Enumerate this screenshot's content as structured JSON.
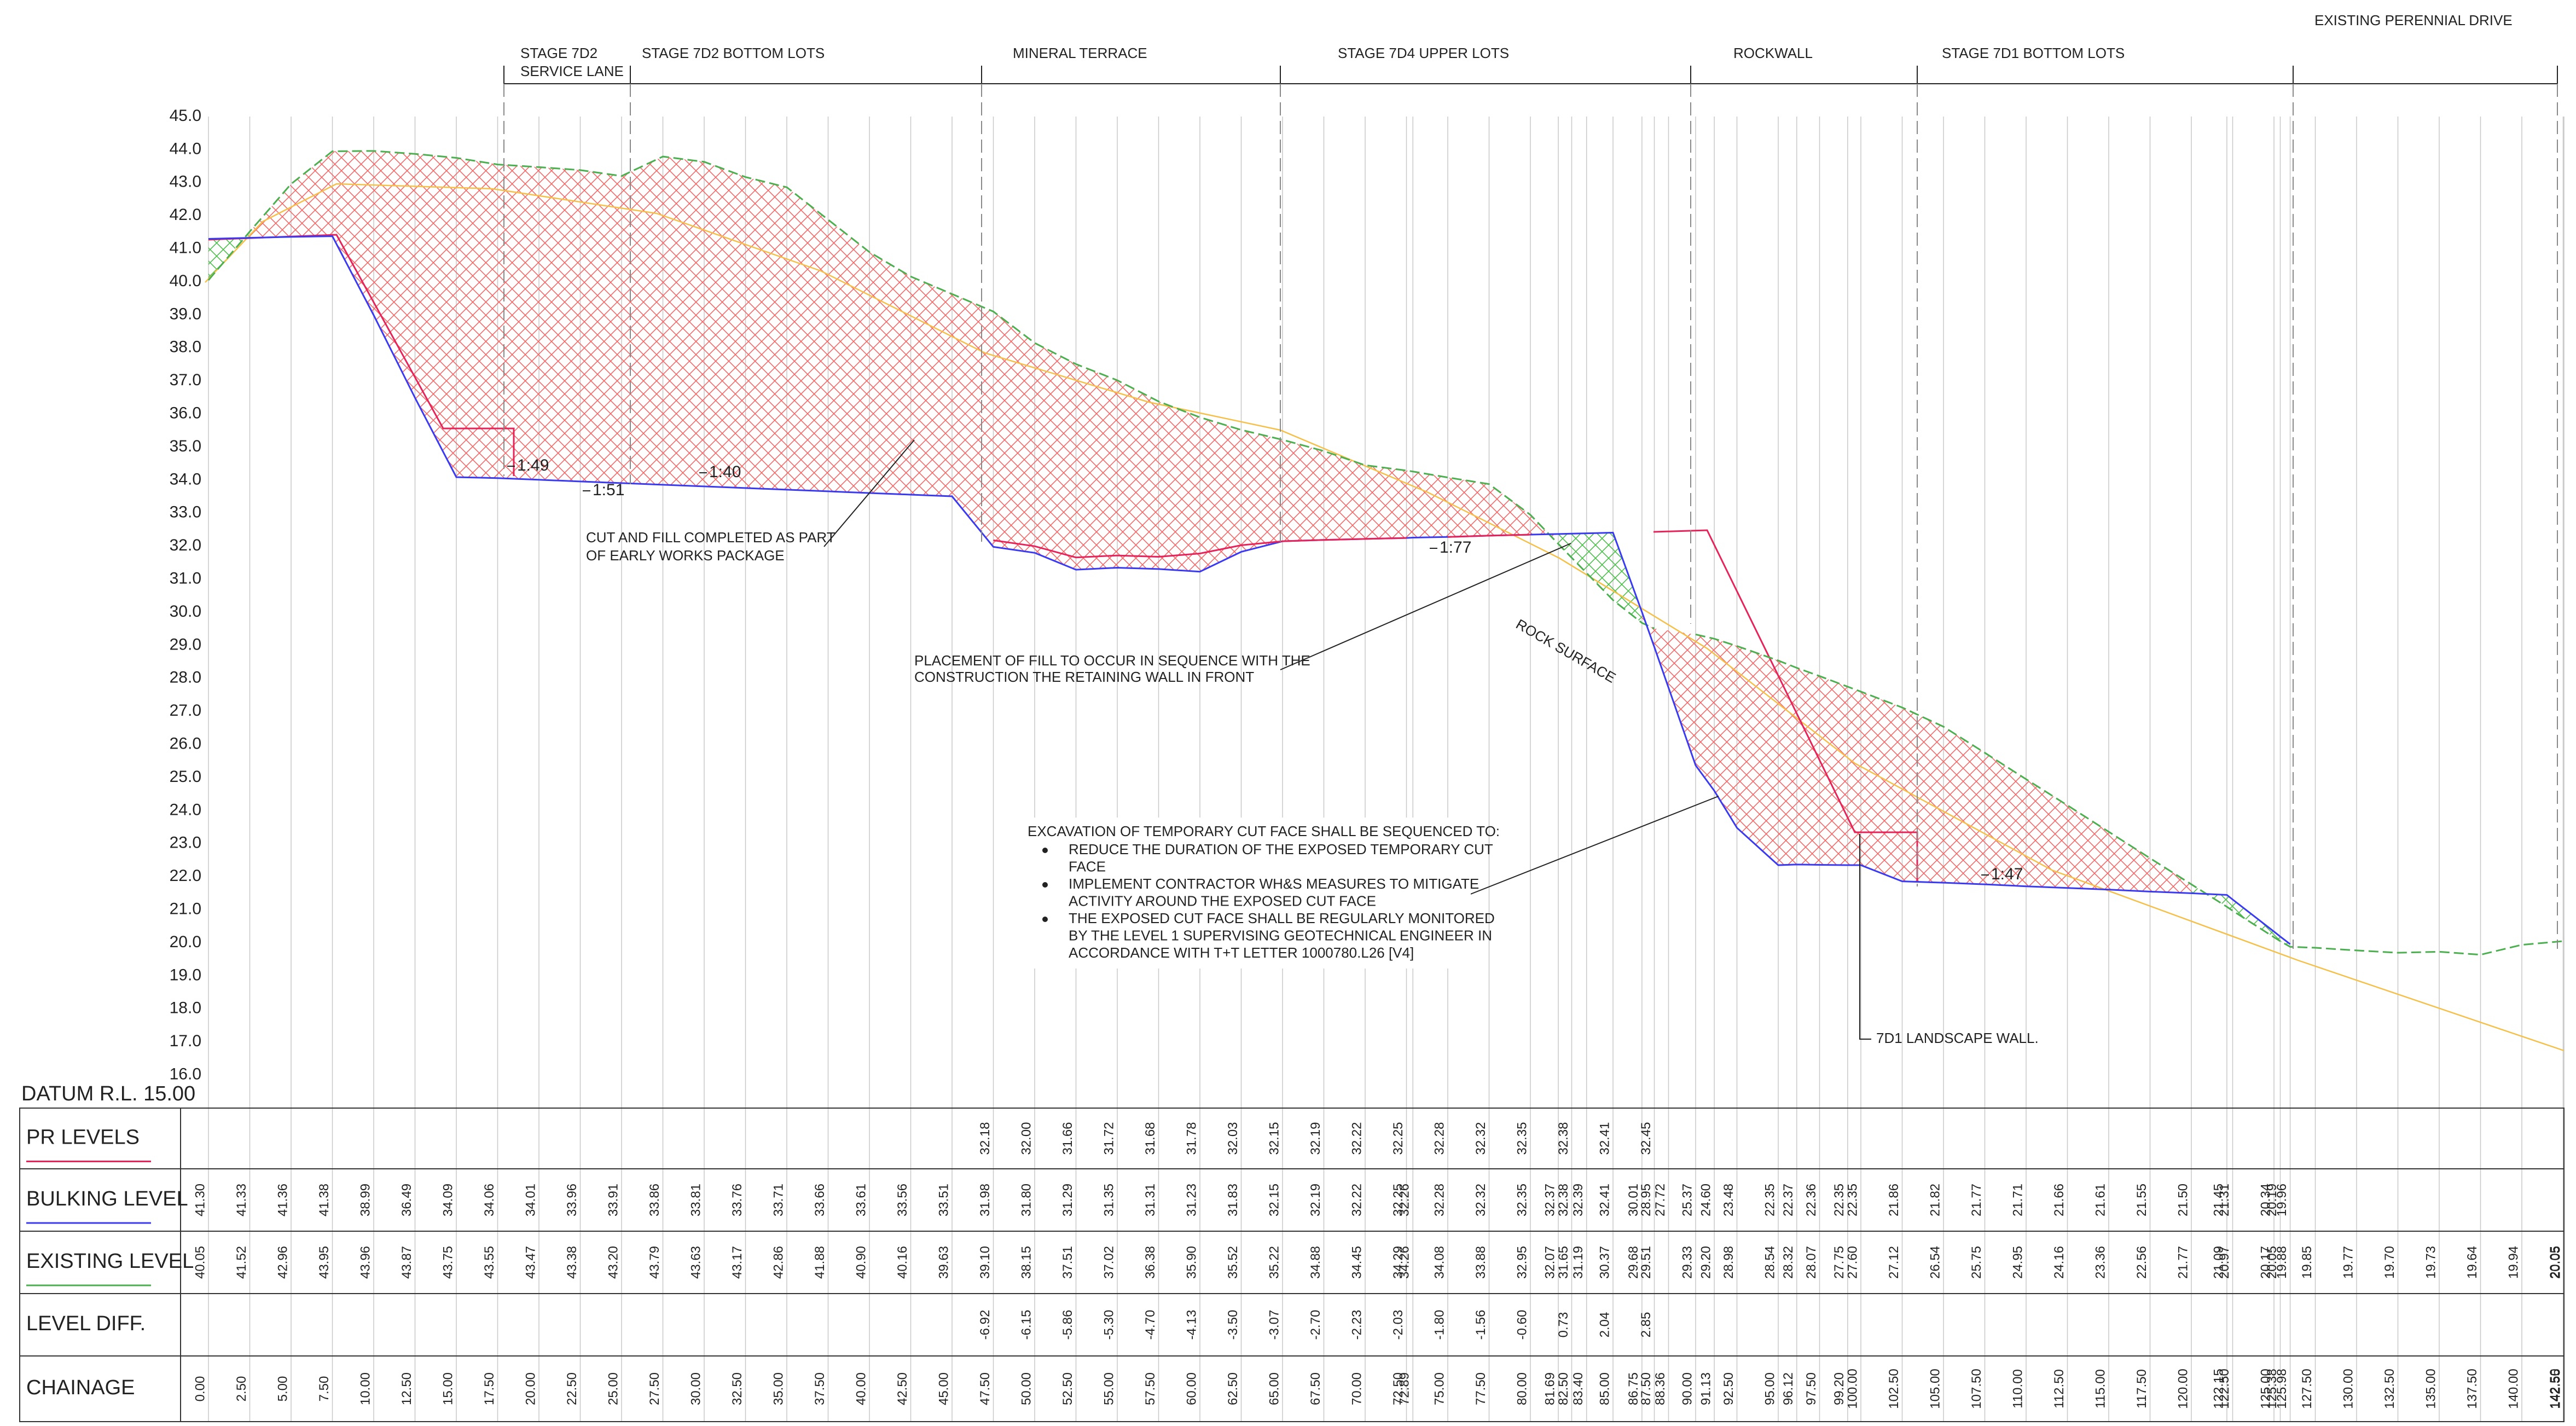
{
  "zones": [
    {
      "lines": [
        "STAGE 7D2",
        "SERVICE LANE"
      ]
    },
    {
      "lines": [
        "STAGE 7D2 BOTTOM LOTS"
      ]
    },
    {
      "lines": [
        "MINERAL TERRACE"
      ]
    },
    {
      "lines": [
        "STAGE 7D4 UPPER LOTS"
      ]
    },
    {
      "lines": [
        "ROCKWALL"
      ]
    },
    {
      "lines": [
        "STAGE 7D1 BOTTOM LOTS"
      ]
    },
    {
      "lines": [
        "EXISTING PERENNIAL DRIVE"
      ]
    }
  ],
  "y_axis": {
    "ticks": [
      "45.0",
      "44.0",
      "43.0",
      "42.0",
      "41.0",
      "40.0",
      "39.0",
      "38.0",
      "37.0",
      "36.0",
      "35.0",
      "34.0",
      "33.0",
      "32.0",
      "31.0",
      "30.0",
      "29.0",
      "28.0",
      "27.0",
      "26.0",
      "25.0",
      "24.0",
      "23.0",
      "22.0",
      "21.0",
      "20.0",
      "19.0",
      "18.0",
      "17.0",
      "16.0"
    ],
    "datum": "DATUM R.L. 15.00"
  },
  "annotations": {
    "cut_fill": [
      "CUT AND FILL COMPLETED AS PART",
      "OF EARLY WORKS PACKAGE"
    ],
    "placement": [
      "PLACEMENT OF FILL TO OCCUR IN SEQUENCE WITH THE",
      "CONSTRUCTION THE RETAINING WALL IN FRONT"
    ],
    "rock_surface": "ROCK SURFACE",
    "landscape_wall": "7D1 LANDSCAPE WALL.",
    "excavation": {
      "heading": "EXCAVATION OF TEMPORARY CUT FACE SHALL BE SEQUENCED TO:",
      "bullets": [
        [
          "REDUCE THE DURATION OF THE EXPOSED TEMPORARY CUT",
          "FACE"
        ],
        [
          "IMPLEMENT CONTRACTOR WH&S MEASURES TO MITIGATE",
          "ACTIVITY AROUND THE EXPOSED CUT FACE"
        ],
        [
          "THE EXPOSED CUT FACE SHALL BE REGULARLY MONITORED",
          "BY THE LEVEL 1 SUPERVISING GEOTECHNICAL ENGINEER IN",
          "ACCORDANCE WITH T+T LETTER 1000780.L26 [V4]"
        ]
      ]
    },
    "slopes": [
      "1:49",
      "1:51",
      "1:40",
      "1:77",
      "1:47"
    ]
  },
  "table": {
    "row_labels": [
      "PR LEVELS",
      "BULKING LEVEL",
      "EXISTING LEVEL",
      "LEVEL DIFF.",
      "CHAINAGE"
    ],
    "rows": [
      [
        null,
        null,
        null,
        null,
        null,
        null,
        null,
        null,
        null,
        null,
        null,
        null,
        null,
        null,
        null,
        null,
        null,
        null,
        null,
        "32.18",
        "32.00",
        "31.66",
        "31.72",
        "31.68",
        "31.78",
        "32.03",
        "32.15",
        "32.19",
        "32.22",
        "32.25",
        null,
        "32.28",
        "32.32",
        "32.35",
        null,
        "32.38",
        null,
        "32.41",
        null,
        "32.45",
        null,
        null,
        null,
        null,
        null,
        null,
        null,
        null,
        null,
        null,
        null,
        null,
        null,
        null,
        null,
        null,
        null,
        null,
        null,
        null,
        null,
        null,
        null,
        null,
        null,
        null,
        null,
        null,
        null,
        null
      ],
      [
        "41.30",
        "41.33",
        "41.36",
        "41.38",
        "38.99",
        "36.49",
        "34.09",
        "34.06",
        "34.01",
        "33.96",
        "33.91",
        "33.86",
        "33.81",
        "33.76",
        "33.71",
        "33.66",
        "33.61",
        "33.56",
        "33.51",
        "31.98",
        "31.80",
        "31.29",
        "31.35",
        "31.31",
        "31.23",
        "31.83",
        "32.15",
        "32.19",
        "32.22",
        "32.25",
        "32.26",
        "32.28",
        "32.32",
        "32.35",
        "32.37",
        "32.38",
        "32.39",
        "32.41",
        "30.01",
        "28.95",
        "27.72",
        "25.37",
        "24.60",
        "23.48",
        "22.35",
        "22.37",
        "22.36",
        "22.35",
        "22.35",
        "21.86",
        "21.82",
        "21.77",
        "21.71",
        "21.66",
        "21.61",
        "21.55",
        "21.50",
        "21.45",
        "21.31",
        "20.34",
        "20.19",
        "19.96",
        null,
        null,
        null,
        null,
        null,
        null,
        null,
        null
      ],
      [
        "40.05",
        "41.52",
        "42.96",
        "43.95",
        "43.96",
        "43.87",
        "43.75",
        "43.55",
        "43.47",
        "43.38",
        "43.20",
        "43.79",
        "43.63",
        "43.17",
        "42.86",
        "41.88",
        "40.90",
        "40.16",
        "39.63",
        "39.10",
        "38.15",
        "37.51",
        "37.02",
        "36.38",
        "35.90",
        "35.52",
        "35.22",
        "34.88",
        "34.45",
        "34.29",
        "34.26",
        "34.08",
        "33.88",
        "32.95",
        "32.07",
        "31.65",
        "31.19",
        "30.37",
        "29.68",
        "29.51",
        null,
        "29.33",
        "29.20",
        "28.98",
        "28.54",
        "28.32",
        "28.07",
        "27.75",
        "27.60",
        "27.12",
        "26.54",
        "25.75",
        "24.95",
        "24.16",
        "23.36",
        "22.56",
        "21.77",
        "21.09",
        "20.97",
        "20.17",
        "20.05",
        "19.88",
        "19.85",
        "19.77",
        "19.70",
        "19.73",
        "19.64",
        "19.94",
        "20.05",
        "20.05"
      ],
      [
        null,
        null,
        null,
        null,
        null,
        null,
        null,
        null,
        null,
        null,
        null,
        null,
        null,
        null,
        null,
        null,
        null,
        null,
        null,
        "-6.92",
        "-6.15",
        "-5.86",
        "-5.30",
        "-4.70",
        "-4.13",
        "-3.50",
        "-3.07",
        "-2.70",
        "-2.23",
        "-2.03",
        null,
        "-1.80",
        "-1.56",
        "-0.60",
        null,
        "0.73",
        null,
        "2.04",
        null,
        "2.85",
        null,
        null,
        null,
        null,
        null,
        null,
        null,
        null,
        null,
        null,
        null,
        null,
        null,
        null,
        null,
        null,
        null,
        null,
        null,
        null,
        null,
        null,
        null,
        null,
        null,
        null,
        null,
        null,
        null,
        null
      ],
      [
        "0.00",
        "2.50",
        "5.00",
        "7.50",
        "10.00",
        "12.50",
        "15.00",
        "17.50",
        "20.00",
        "22.50",
        "25.00",
        "27.50",
        "30.00",
        "32.50",
        "35.00",
        "37.50",
        "40.00",
        "42.50",
        "45.00",
        "47.50",
        "50.00",
        "52.50",
        "55.00",
        "57.50",
        "60.00",
        "62.50",
        "65.00",
        "67.50",
        "70.00",
        "72.50",
        "72.89",
        "75.00",
        "77.50",
        "80.00",
        "81.69",
        "82.50",
        "83.40",
        "85.00",
        "86.75",
        "87.50",
        "88.36",
        "90.00",
        "91.13",
        "92.50",
        "95.00",
        "96.12",
        "97.50",
        "99.20",
        "100.00",
        "102.50",
        "105.00",
        "107.50",
        "110.00",
        "112.50",
        "115.00",
        "117.50",
        "120.00",
        "122.15",
        "122.50",
        "125.00",
        "125.38",
        "125.98",
        "127.50",
        "130.00",
        "132.50",
        "135.00",
        "137.50",
        "140.00",
        "142.50",
        "142.55"
      ]
    ]
  }
}
